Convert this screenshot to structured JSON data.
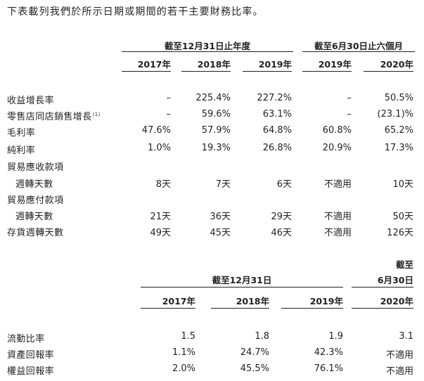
{
  "intro": "下表載列我們於所示日期或期間的若干主要財務比率。",
  "table1": {
    "group_fy": "截至12月31日止年度",
    "group_6m": "截至6月30日止六個月",
    "years": [
      "2017年",
      "2018年",
      "2019年",
      "2019年",
      "2020年"
    ],
    "rows": [
      {
        "label": "收益增長率",
        "values": [
          "–",
          "225.4%",
          "227.2%",
          "–",
          "50.5%"
        ]
      },
      {
        "label": "零售店同店銷售增長",
        "note": "(1)",
        "values": [
          "–",
          "59.6%",
          "63.1%",
          "–",
          "(23.1)%"
        ]
      },
      {
        "label": "毛利率",
        "values": [
          "47.6%",
          "57.9%",
          "64.8%",
          "60.8%",
          "65.2%"
        ]
      },
      {
        "label": "純利率",
        "values": [
          "1.0%",
          "19.3%",
          "26.8%",
          "20.9%",
          "17.3%"
        ]
      },
      {
        "label": "貿易應收款項",
        "values": [
          "",
          "",
          "",
          "",
          ""
        ]
      },
      {
        "label": "週轉天數",
        "indent": true,
        "values": [
          "8天",
          "7天",
          "6天",
          "不適用",
          "10天"
        ]
      },
      {
        "label": "貿易應付款項",
        "values": [
          "",
          "",
          "",
          "",
          ""
        ]
      },
      {
        "label": "週轉天數",
        "indent": true,
        "values": [
          "21天",
          "36天",
          "29天",
          "不適用",
          "50天"
        ]
      },
      {
        "label": "存貨週轉天數",
        "values": [
          "49天",
          "45天",
          "46天",
          "不適用",
          "126天"
        ]
      }
    ]
  },
  "table2": {
    "group_fy": "截至12月31日",
    "group_6m_line1": "截至",
    "group_6m_line2": "6月30日",
    "years": [
      "2017年",
      "2018年",
      "2019年",
      "2020年"
    ],
    "rows": [
      {
        "label": "流動比率",
        "values": [
          "1.5",
          "1.8",
          "1.9",
          "3.1"
        ]
      },
      {
        "label": "資產回報率",
        "values": [
          "1.1%",
          "24.7%",
          "42.3%",
          "不適用"
        ]
      },
      {
        "label": "權益回報率",
        "values": [
          "2.0%",
          "45.5%",
          "76.1%",
          "不適用"
        ]
      }
    ]
  }
}
